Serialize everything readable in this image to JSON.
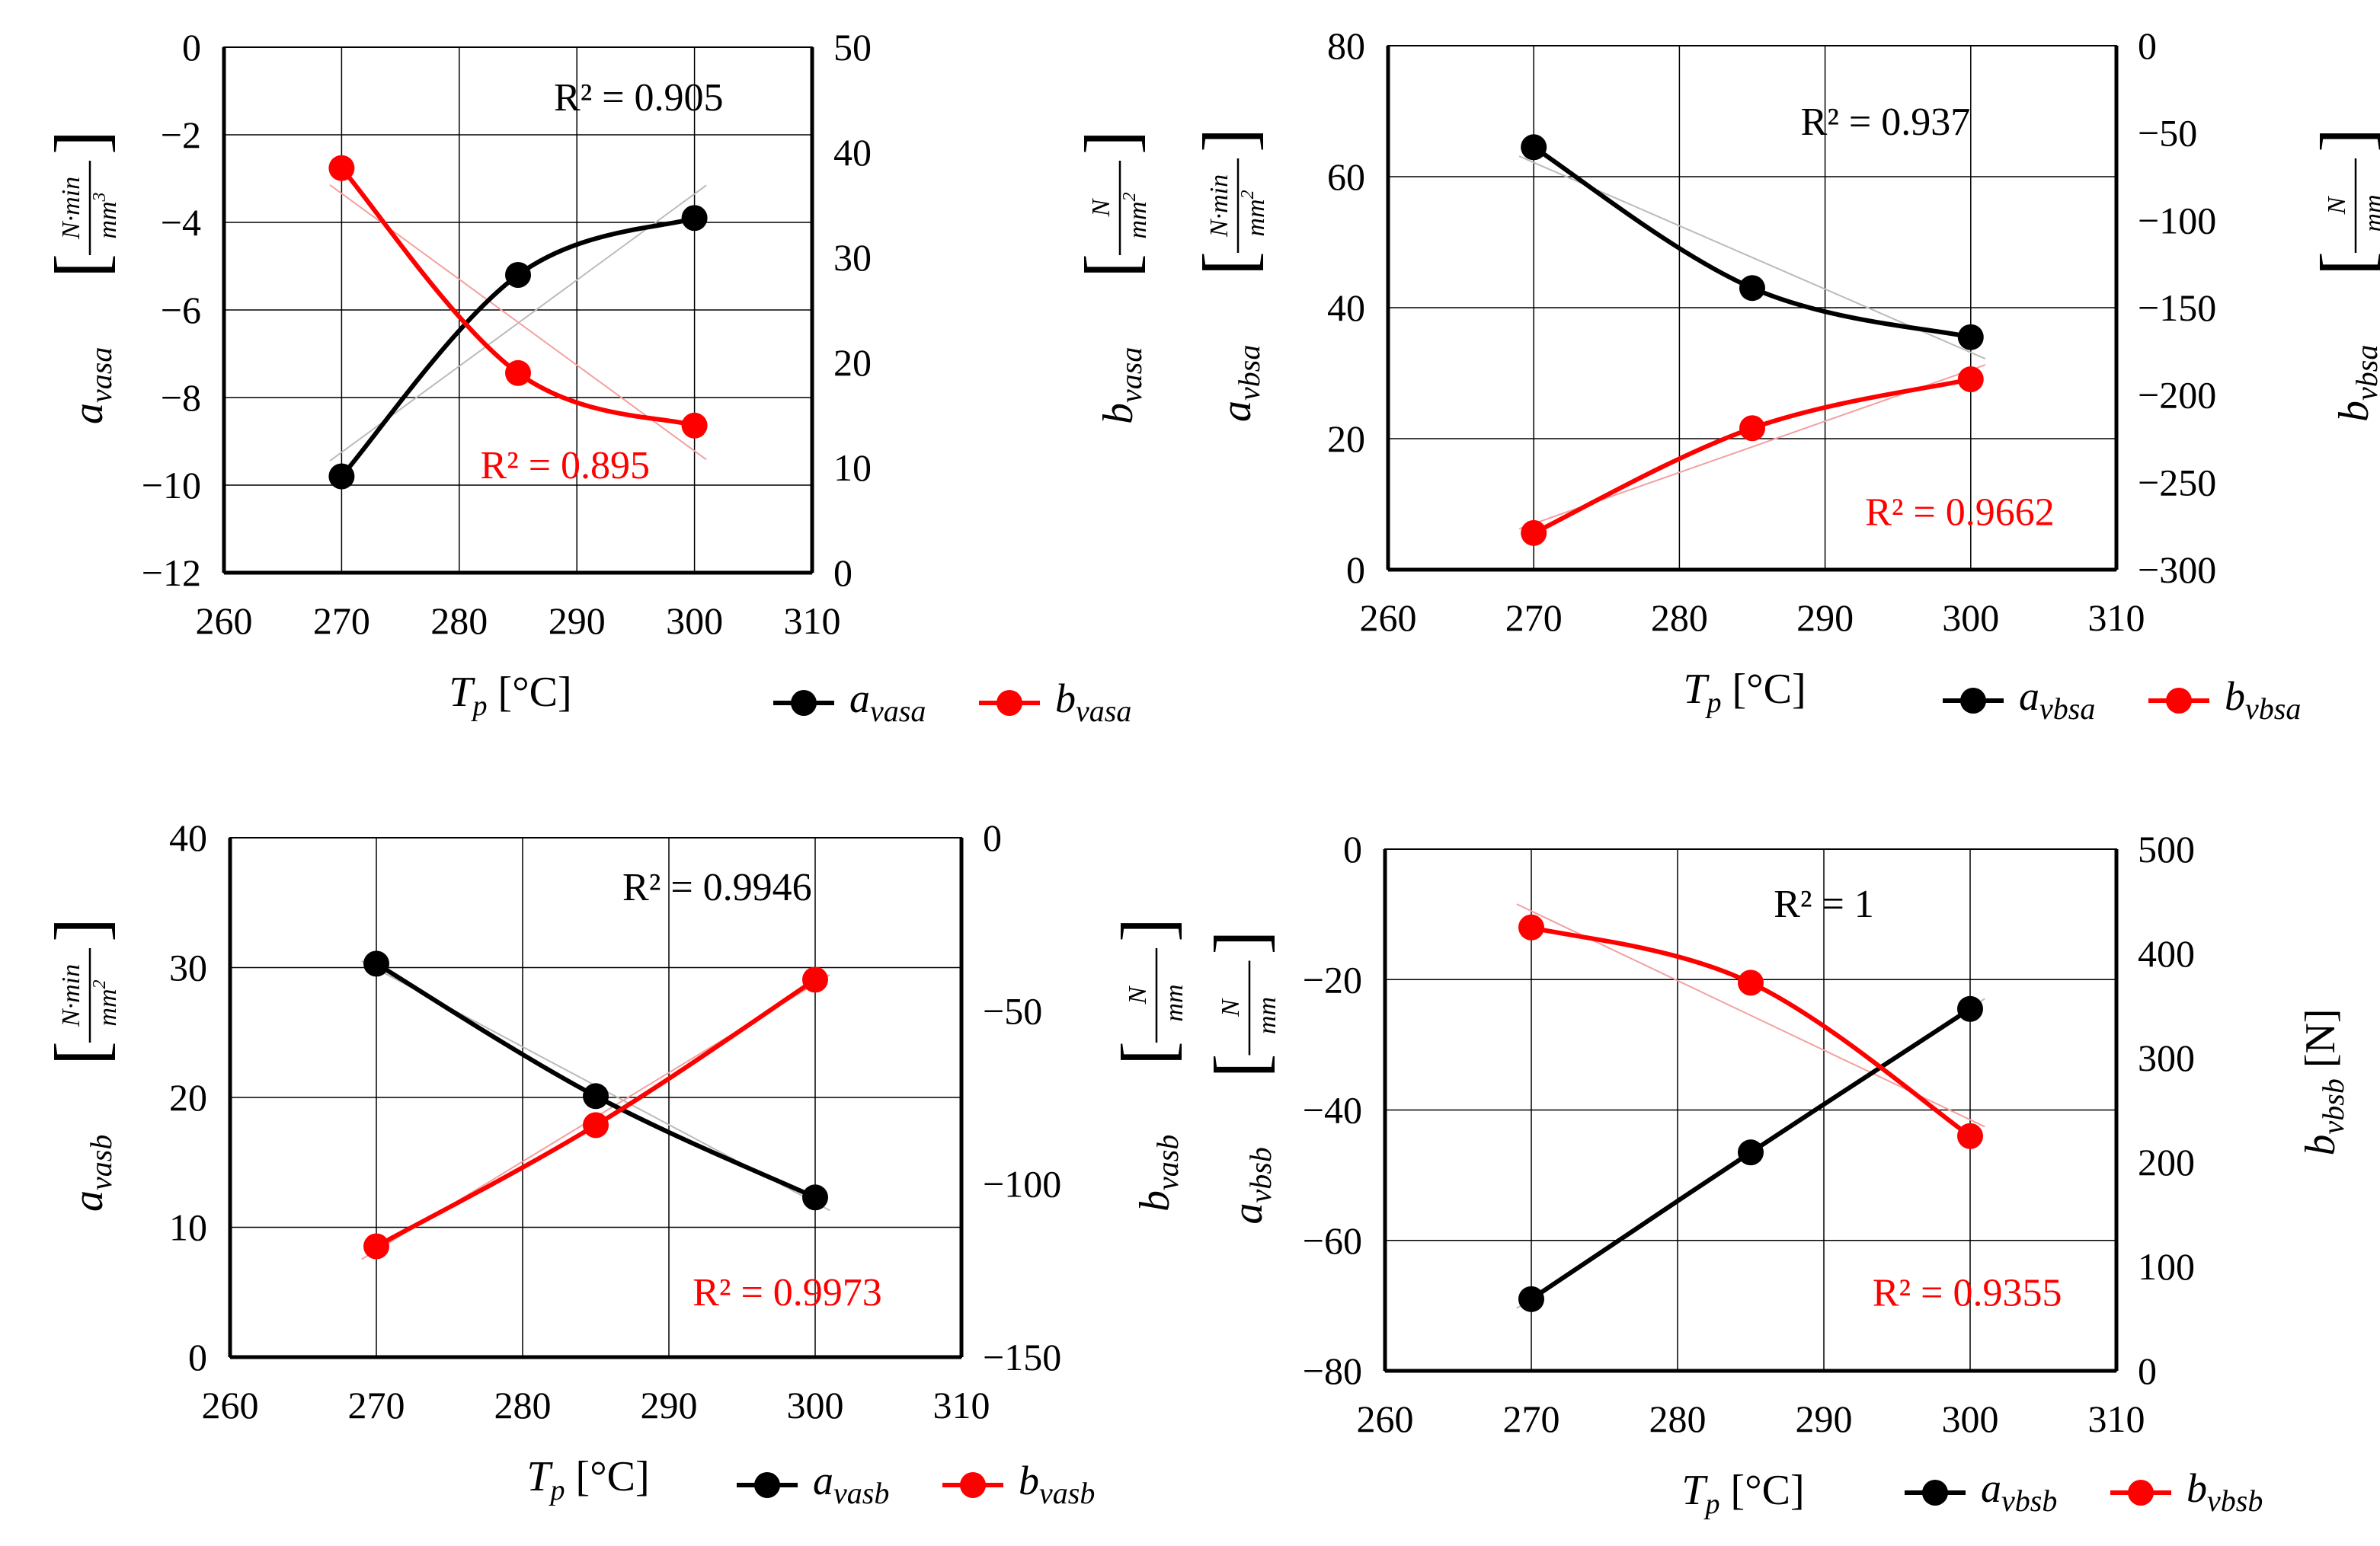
{
  "colors": {
    "series_a": "#000000",
    "series_b": "#ff0000",
    "grid": "#000000",
    "trend_a": "#bbbbbb",
    "trend_b": "#f4a0a0"
  },
  "chart_data": [
    {
      "id": "vasa",
      "type": "line",
      "xlabel_main": "T",
      "xlabel_sub": "p",
      "xlabel_unit": "[°C]",
      "xlim": [
        260,
        310
      ],
      "x_ticks": [
        "260",
        "270",
        "280",
        "290",
        "300",
        "310"
      ],
      "ylim_left": [
        -12,
        0
      ],
      "left_ticks": [
        "-12",
        "-10",
        "-8",
        "-6",
        "-4",
        "-2",
        "0"
      ],
      "ylim_right": [
        0,
        50
      ],
      "right_ticks": [
        "0",
        "10",
        "20",
        "30",
        "40",
        "50"
      ],
      "left_label": "a",
      "left_label_sub": "vasa",
      "left_unit_num": "N·min",
      "left_unit_den": "mm",
      "left_unit_exp": "3",
      "right_label": "b",
      "right_label_sub": "vasa",
      "right_unit_num": "N",
      "right_unit_den": "mm",
      "right_unit_exp": "2",
      "series": [
        {
          "name": "a",
          "sub": "vasa",
          "axis": "left",
          "x": [
            270,
            285,
            300
          ],
          "values": [
            -9.8,
            -5.2,
            -3.9
          ]
        },
        {
          "name": "b",
          "sub": "vasa",
          "axis": "right",
          "x": [
            270,
            285,
            300
          ],
          "values": [
            38.5,
            19,
            14
          ]
        }
      ],
      "r2_a": "R² = 0.905",
      "r2_b": "R² = 0.895"
    },
    {
      "id": "vbsa",
      "type": "line",
      "xlabel_main": "T",
      "xlabel_sub": "p",
      "xlabel_unit": "[°C]",
      "xlim": [
        260,
        310
      ],
      "x_ticks": [
        "260",
        "270",
        "280",
        "290",
        "300",
        "310"
      ],
      "ylim_left": [
        0,
        80
      ],
      "left_ticks": [
        "0",
        "20",
        "40",
        "60",
        "80"
      ],
      "ylim_right": [
        -300,
        0
      ],
      "right_ticks": [
        "-300",
        "-250",
        "-200",
        "-150",
        "-100",
        "-50",
        "0"
      ],
      "left_label": "a",
      "left_label_sub": "vbsa",
      "left_unit_num": "N·min",
      "left_unit_den": "mm",
      "left_unit_exp": "2",
      "right_label": "b",
      "right_label_sub": "vbsa",
      "right_unit_num": "N",
      "right_unit_den": "mm",
      "right_unit_exp": "",
      "series": [
        {
          "name": "a",
          "sub": "vbsa",
          "axis": "left",
          "x": [
            270,
            285,
            300
          ],
          "values": [
            64.5,
            43,
            35.5
          ]
        },
        {
          "name": "b",
          "sub": "vbsa",
          "axis": "right",
          "x": [
            270,
            285,
            300
          ],
          "values": [
            -279,
            -219,
            -191
          ]
        }
      ],
      "r2_a": "R² = 0.937",
      "r2_b": "R² = 0.9662"
    },
    {
      "id": "vasb",
      "type": "line",
      "xlabel_main": "T",
      "xlabel_sub": "p",
      "xlabel_unit": "[°C]",
      "xlim": [
        260,
        310
      ],
      "x_ticks": [
        "260",
        "270",
        "280",
        "290",
        "300",
        "310"
      ],
      "ylim_left": [
        0,
        40
      ],
      "left_ticks": [
        "0",
        "10",
        "20",
        "30",
        "40"
      ],
      "ylim_right": [
        -150,
        0
      ],
      "right_ticks": [
        "-150",
        "-100",
        "-50",
        "0"
      ],
      "left_label": "a",
      "left_label_sub": "vasb",
      "left_unit_num": "N·min",
      "left_unit_den": "mm",
      "left_unit_exp": "2",
      "right_label": "b",
      "right_label_sub": "vasb",
      "right_unit_num": "N",
      "right_unit_den": "mm",
      "right_unit_exp": "",
      "series": [
        {
          "name": "a",
          "sub": "vasb",
          "axis": "left",
          "x": [
            270,
            285,
            300
          ],
          "values": [
            30.3,
            20.1,
            12.3
          ]
        },
        {
          "name": "b",
          "sub": "vasb",
          "axis": "right",
          "x": [
            270,
            285,
            300
          ],
          "values": [
            -118,
            -83,
            -41
          ]
        }
      ],
      "r2_a": "R² = 0.9946",
      "r2_b": "R² = 0.9973"
    },
    {
      "id": "vbsb",
      "type": "line",
      "xlabel_main": "T",
      "xlabel_sub": "p",
      "xlabel_unit": "[°C]",
      "xlim": [
        260,
        310
      ],
      "x_ticks": [
        "260",
        "270",
        "280",
        "290",
        "300",
        "310"
      ],
      "ylim_left": [
        -80,
        0
      ],
      "left_ticks": [
        "-80",
        "-60",
        "-40",
        "-20",
        "0"
      ],
      "ylim_right": [
        0,
        500
      ],
      "right_ticks": [
        "0",
        "100",
        "200",
        "300",
        "400",
        "500"
      ],
      "left_label": "a",
      "left_label_sub": "vbsb",
      "left_unit_num": "N",
      "left_unit_den": "mm",
      "left_unit_exp": "",
      "right_label": "b",
      "right_label_sub": "vbsb",
      "right_unit_plain": "[N]",
      "series": [
        {
          "name": "a",
          "sub": "vbsb",
          "axis": "left",
          "x": [
            270,
            285,
            300
          ],
          "values": [
            -69,
            -46.5,
            -24.5
          ]
        },
        {
          "name": "b",
          "sub": "vbsb",
          "axis": "right",
          "x": [
            270,
            285,
            300
          ],
          "values": [
            425,
            372,
            225
          ]
        }
      ],
      "r2_a": "R² = 1",
      "r2_b": "R² = 0.9355"
    }
  ]
}
